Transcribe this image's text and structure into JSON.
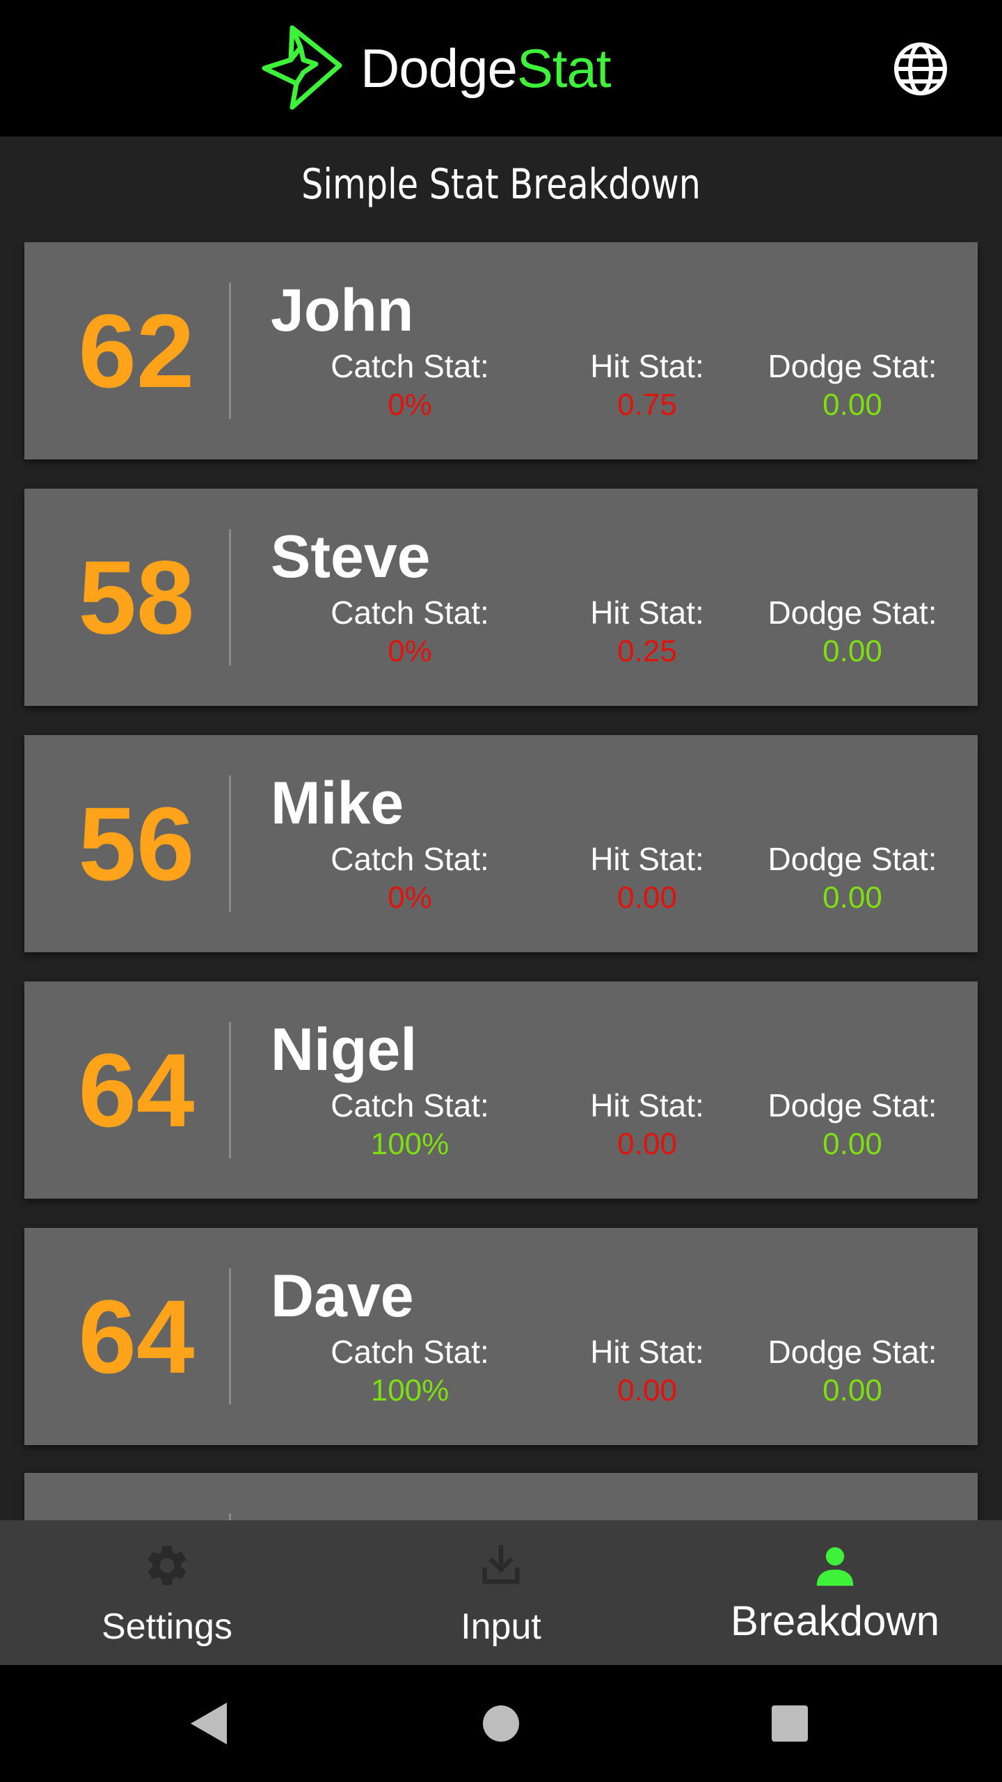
{
  "app": {
    "brand_part1": "Dodge",
    "brand_part2": "Stat",
    "accent_color": "#3ef23a"
  },
  "page": {
    "title": "Simple Stat Breakdown"
  },
  "labels": {
    "catch": "Catch Stat:",
    "hit": "Hit Stat:",
    "dodge": "Dodge Stat:"
  },
  "players": [
    {
      "score": "62",
      "name": "John",
      "catch": "0%",
      "hit": "0.75",
      "dodge": "0.00",
      "catch_color": "red",
      "hit_color": "red",
      "dodge_color": "green"
    },
    {
      "score": "58",
      "name": "Steve",
      "catch": "0%",
      "hit": "0.25",
      "dodge": "0.00",
      "catch_color": "red",
      "hit_color": "red",
      "dodge_color": "green"
    },
    {
      "score": "56",
      "name": "Mike",
      "catch": "0%",
      "hit": "0.00",
      "dodge": "0.00",
      "catch_color": "red",
      "hit_color": "red",
      "dodge_color": "green"
    },
    {
      "score": "64",
      "name": "Nigel",
      "catch": "100%",
      "hit": "0.00",
      "dodge": "0.00",
      "catch_color": "green",
      "hit_color": "red",
      "dodge_color": "green"
    },
    {
      "score": "64",
      "name": "Dave",
      "catch": "100%",
      "hit": "0.00",
      "dodge": "0.00",
      "catch_color": "green",
      "hit_color": "red",
      "dodge_color": "green"
    }
  ],
  "nav": {
    "items": [
      {
        "label": "Settings",
        "icon": "gear-icon",
        "active": false
      },
      {
        "label": "Input",
        "icon": "download-icon",
        "active": false
      },
      {
        "label": "Breakdown",
        "icon": "person-icon",
        "active": true
      }
    ]
  },
  "colors": {
    "score": "#ffa31a",
    "bad": "#e3120b",
    "good": "#7ddf10",
    "card": "#646464",
    "background": "#222222",
    "nav_active_icon": "#3ef23a",
    "nav_inactive_icon": "#2a2a2a"
  }
}
